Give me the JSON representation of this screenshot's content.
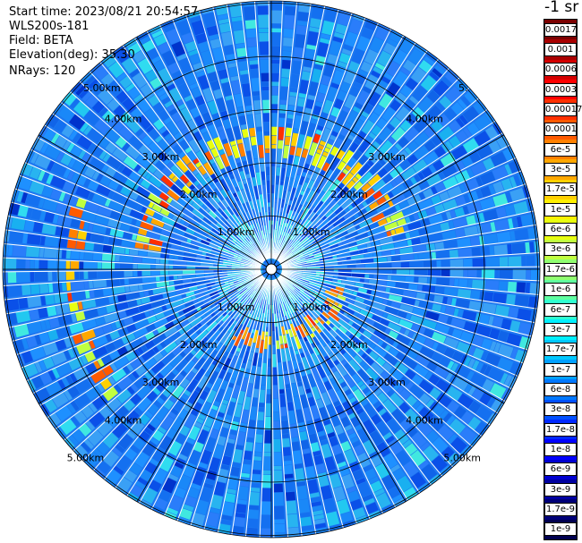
{
  "info": {
    "start_time": "Start time: 2023/08/21 20:54:57",
    "instrument": "WLS200s-181",
    "field": "Field: BETA",
    "elevation": "Elevation(deg): 35.30",
    "nrays": "NRays: 120"
  },
  "unit_label": "-1 sr",
  "range_rings": [
    "1.00km",
    "2.00km",
    "3.00km",
    "4.00km",
    "5.00km"
  ],
  "compass_labels": {
    "top_left": "5.00km",
    "top_right": "5."
  },
  "colorbar": {
    "labels": [
      "0.0017",
      "0.001",
      "0.0006",
      "0.0003",
      "0.00017",
      "0.0001",
      "6e-5",
      "3e-5",
      "1.7e-5",
      "1e-5",
      "6e-6",
      "3e-6",
      "1.7e-6",
      "1e-6",
      "6e-7",
      "3e-7",
      "1.7e-7",
      "1e-7",
      "6e-8",
      "3e-8",
      "1.7e-8",
      "1e-8",
      "6e-9",
      "3e-9",
      "1.7e-9",
      "1e-9"
    ],
    "colors": [
      "#7a0000",
      "#a80000",
      "#d40000",
      "#ff0000",
      "#ff3000",
      "#ff5a00",
      "#ff8000",
      "#ffa800",
      "#ffd000",
      "#fff000",
      "#e8ff10",
      "#c0ff40",
      "#90ff70",
      "#60ffa0",
      "#30ffd0",
      "#00f0ff",
      "#00c8ff",
      "#00a0ff",
      "#0078ff",
      "#0050ff",
      "#0028ff",
      "#0000ff",
      "#0000d0",
      "#0000a0",
      "#000078",
      "#000050"
    ]
  }
}
